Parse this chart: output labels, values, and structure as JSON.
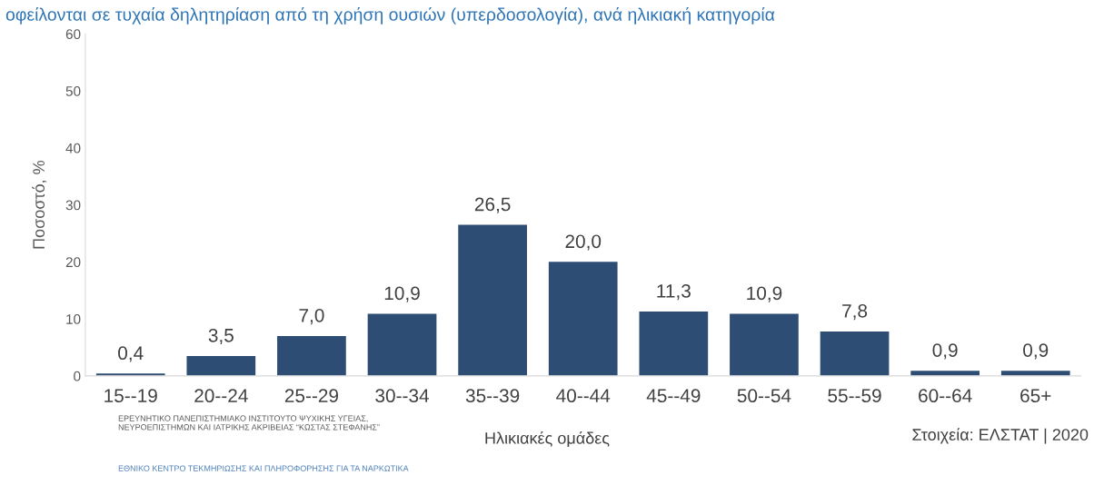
{
  "chart_data": {
    "type": "bar",
    "title": "οφείλονται σε τυχαία δηλητηρίαση από τη χρήση ουσιών (υπερδοσολογία), ανά ηλικιακή κατηγορία",
    "xlabel": "Ηλικιακές ομάδες",
    "ylabel": "Ποσοστό, %",
    "categories": [
      "15--19",
      "20--24",
      "25--29",
      "30--34",
      "35--39",
      "40--44",
      "45--49",
      "50--54",
      "55--59",
      "60--64",
      "65+"
    ],
    "values": [
      0.4,
      3.5,
      7.0,
      10.9,
      26.5,
      20.0,
      11.3,
      10.9,
      7.8,
      0.9,
      0.9
    ],
    "value_labels": [
      "0,4",
      "3,5",
      "7,0",
      "10,9",
      "26,5",
      "20,0",
      "11,3",
      "10,9",
      "7,8",
      "0,9",
      "0,9"
    ],
    "color": "#2e4d74",
    "ylim": [
      0,
      60
    ],
    "yticks": [
      0,
      10,
      20,
      30,
      40,
      50,
      60
    ],
    "grid": false,
    "annotations": [
      "ΕΡΕΥΝΗΤΙΚΟ ΠΑΝΕΠΙΣΤΗΜΙΑΚΟ ΙΝΣΤΙΤΟΥΤΟ ΨΥΧΙΚΗΣ ΥΓΕΙΑΣ,\nΝΕΥΡΟΕΠΙΣΤΗΜΩΝ ΚΑΙ ΙΑΤΡΙΚΗΣ ΑΚΡΙΒΕΙΑΣ “ΚΩΣΤΑΣ ΣΤΕΦΑΝΗΣ”",
      "ΕΘΝΙΚΟ ΚΕΝΤΡΟ ΤΕΚΜΗΡΙΩΣΗΣ ΚΑΙ ΠΛΗΡΟΦΟΡΗΣΗΣ ΓΙΑ ΤΑ ΝΑΡΚΩΤΙΚΑ",
      "Στοιχεία: ΕΛΣΤΑΤ | 2020"
    ]
  }
}
